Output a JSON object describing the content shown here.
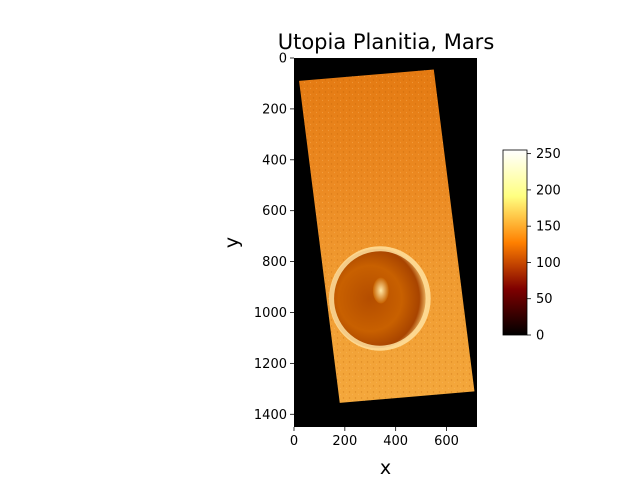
{
  "chart_data": {
    "type": "heatmap",
    "title": "Utopia Planitia, Mars",
    "xlabel": "x",
    "ylabel": "y",
    "xlim": [
      0,
      720
    ],
    "ylim": [
      1450,
      0
    ],
    "xticks": [
      "0",
      "200",
      "400",
      "600"
    ],
    "yticks": [
      "0",
      "200",
      "400",
      "600",
      "800",
      "1000",
      "1200",
      "1400"
    ],
    "colormap": "afmhot",
    "colorbar": {
      "range": [
        0,
        255
      ],
      "ticks": [
        "0",
        "50",
        "100",
        "150",
        "200",
        "250"
      ]
    },
    "grid": false,
    "image_footprint": [
      [
        20,
        90
      ],
      [
        550,
        45
      ],
      [
        710,
        1310
      ],
      [
        180,
        1355
      ]
    ],
    "crater": {
      "center": [
        330,
        945
      ],
      "radius": 190
    }
  }
}
